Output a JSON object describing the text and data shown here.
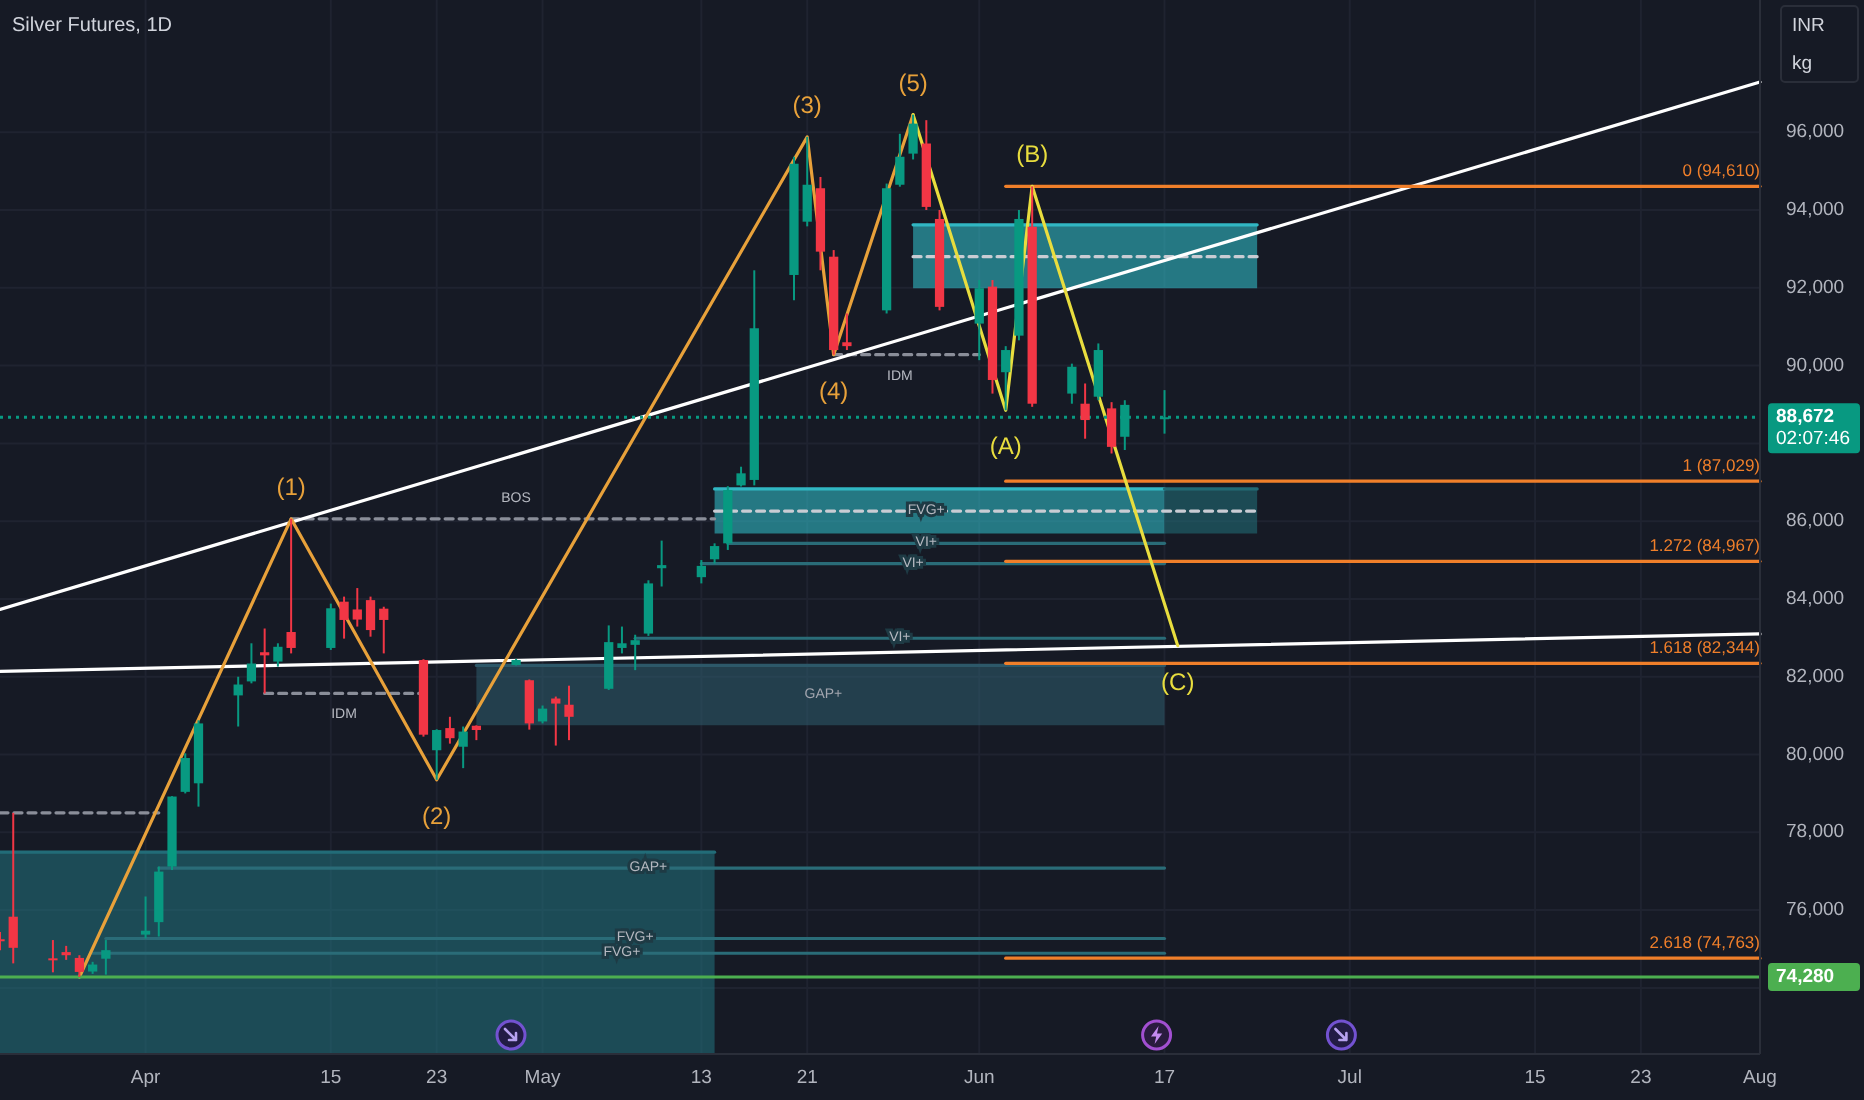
{
  "chart_data": {
    "type": "candlestick",
    "title": "Silver Futures, 1D",
    "ylabel": "INR\nkg",
    "x": [
      "--03-21",
      "--03-22",
      "--03-25",
      "--03-26",
      "--03-27",
      "--03-28",
      "--03-29",
      "--04-01",
      "--04-02",
      "--04-03",
      "--04-04",
      "--04-05",
      "--04-08",
      "--04-09",
      "--04-10",
      "--04-11",
      "--04-12",
      "--04-15",
      "--04-16",
      "--04-17",
      "--04-18",
      "--04-19",
      "--04-22",
      "--04-23",
      "--04-24",
      "--04-25",
      "--04-26",
      "--04-29",
      "--04-30",
      "--05-01",
      "--05-02",
      "--05-03",
      "--05-06",
      "--05-07",
      "--05-08",
      "--05-09",
      "--05-10",
      "--05-13",
      "--05-14",
      "--05-15",
      "--05-16",
      "--05-17",
      "--05-20",
      "--05-21",
      "--05-22",
      "--05-23",
      "--05-24",
      "--05-27",
      "--05-28",
      "--05-29",
      "--05-30",
      "--05-31",
      "--06-03",
      "--06-04",
      "--06-05",
      "--06-06",
      "--06-07",
      "--06-10",
      "--06-11",
      "--06-12",
      "--06-13",
      "--06-14",
      "--06-17"
    ],
    "ohlc": [
      [
        75250,
        75440,
        74970,
        75230
      ],
      [
        75830,
        78500,
        74630,
        75030
      ],
      [
        74760,
        75230,
        74400,
        74740
      ],
      [
        74920,
        75080,
        74720,
        74840
      ],
      [
        74770,
        74840,
        74280,
        74410
      ],
      [
        74420,
        74670,
        74360,
        74600
      ],
      [
        74750,
        75230,
        74340,
        74970
      ],
      [
        75370,
        76350,
        75270,
        75470
      ],
      [
        75690,
        77120,
        75320,
        76990
      ],
      [
        77120,
        78930,
        77030,
        78920
      ],
      [
        79040,
        80030,
        79000,
        79910
      ],
      [
        79260,
        80880,
        78660,
        80800
      ],
      [
        81520,
        82000,
        80720,
        81800
      ],
      [
        81880,
        82860,
        81830,
        82340
      ],
      [
        82630,
        83240,
        81570,
        82550
      ],
      [
        82390,
        82860,
        82260,
        82770
      ],
      [
        83150,
        86060,
        82600,
        82740
      ],
      [
        82740,
        83880,
        82690,
        83760
      ],
      [
        83930,
        84060,
        82980,
        83460
      ],
      [
        83730,
        84280,
        83290,
        83470
      ],
      [
        83970,
        84060,
        83030,
        83200
      ],
      [
        83750,
        83800,
        82600,
        83460
      ],
      [
        82430,
        82450,
        80460,
        80510
      ],
      [
        80110,
        80650,
        79350,
        80630
      ],
      [
        80680,
        80970,
        80280,
        80420
      ],
      [
        80200,
        80720,
        79650,
        80590
      ],
      [
        80740,
        80750,
        80370,
        80630
      ],
      [
        82300,
        82460,
        82290,
        82430
      ],
      [
        81910,
        81930,
        80640,
        80800
      ],
      [
        80850,
        81260,
        80800,
        81180
      ],
      [
        81440,
        81490,
        80230,
        81310
      ],
      [
        81280,
        81770,
        80370,
        80970
      ],
      [
        81690,
        83320,
        81660,
        82890
      ],
      [
        82740,
        83290,
        82600,
        82860
      ],
      [
        82820,
        83080,
        82170,
        82940
      ],
      [
        83110,
        84480,
        83050,
        84400
      ],
      [
        84790,
        85500,
        84320,
        84870
      ],
      [
        84560,
        85000,
        84400,
        84850
      ],
      [
        85020,
        85430,
        84910,
        85360
      ],
      [
        85430,
        86900,
        85260,
        86800
      ],
      [
        86920,
        87400,
        86890,
        87230
      ],
      [
        87060,
        92450,
        86920,
        90960
      ],
      [
        92330,
        95370,
        91680,
        95190
      ],
      [
        93700,
        95880,
        93580,
        94650
      ],
      [
        94560,
        94850,
        92450,
        92930
      ],
      [
        92800,
        92970,
        90280,
        90400
      ],
      [
        90600,
        91340,
        90400,
        90500
      ],
      [
        91420,
        94680,
        91340,
        94560
      ],
      [
        94650,
        95960,
        94600,
        95370
      ],
      [
        95450,
        96450,
        95300,
        96220
      ],
      [
        95710,
        96310,
        94000,
        94080
      ],
      [
        93770,
        94000,
        91420,
        91510
      ],
      [
        91080,
        92200,
        90140,
        91990
      ],
      [
        92030,
        92200,
        89280,
        89630
      ],
      [
        89830,
        90500,
        88850,
        90400
      ],
      [
        90770,
        94000,
        90650,
        93770
      ],
      [
        93570,
        94610,
        88940,
        89020
      ],
      [
        89280,
        90050,
        89020,
        89970
      ],
      [
        89020,
        89540,
        88120,
        88600
      ],
      [
        89200,
        90570,
        89110,
        90400
      ],
      [
        88900,
        89060,
        87740,
        87910
      ],
      [
        88170,
        89110,
        87830,
        88990
      ],
      [
        88640,
        89370,
        88250,
        88672
      ]
    ],
    "colors": [
      "#f23645",
      "#f23645",
      "#f23645",
      "#f23645",
      "#f23645",
      "#089981",
      "#089981",
      "#089981",
      "#089981",
      "#089981",
      "#089981",
      "#089981",
      "#089981",
      "#089981",
      "#f23645",
      "#089981",
      "#f23645",
      "#089981",
      "#f23645",
      "#f23645",
      "#f23645",
      "#f23645",
      "#f23645",
      "#089981",
      "#f23645",
      "#089981",
      "#f23645",
      "#089981",
      "#f23645",
      "#089981",
      "#f23645",
      "#f23645",
      "#089981",
      "#089981",
      "#089981",
      "#089981",
      "#089981",
      "#089981",
      "#089981",
      "#089981",
      "#089981",
      "#089981",
      "#089981",
      "#089981",
      "#f23645",
      "#f23645",
      "#f23645",
      "#089981",
      "#089981",
      "#089981",
      "#f23645",
      "#f23645",
      "#089981",
      "#f23645",
      "#089981",
      "#089981",
      "#f23645",
      "#089981",
      "#f23645",
      "#089981",
      "#f23645",
      "#089981",
      "#089981"
    ],
    "xlim": [
      "--03-21",
      "--08-01"
    ],
    "xticks": [
      {
        "value": "--04-01",
        "label": "Apr"
      },
      {
        "value": "--04-15",
        "label": "15"
      },
      {
        "value": "--04-23",
        "label": "23"
      },
      {
        "value": "--05-01",
        "label": "May"
      },
      {
        "value": "--05-13",
        "label": "13"
      },
      {
        "value": "--05-21",
        "label": "21"
      },
      {
        "value": "--06-03",
        "label": "Jun"
      },
      {
        "value": "--06-17",
        "label": "17"
      },
      {
        "value": "--07-01",
        "label": "Jul"
      },
      {
        "value": "--07-15",
        "label": "15"
      },
      {
        "value": "--07-23",
        "label": "23"
      },
      {
        "value": "--08-01",
        "label": "Aug"
      }
    ],
    "ylim": [
      72300,
      99400
    ],
    "yticks": [
      {
        "value": 74000,
        "label": null
      },
      {
        "value": 76000,
        "label": "76,000"
      },
      {
        "value": 78000,
        "label": "78,000"
      },
      {
        "value": 80000,
        "label": "80,000"
      },
      {
        "value": 82000,
        "label": "82,000"
      },
      {
        "value": 84000,
        "label": "84,000"
      },
      {
        "value": 86000,
        "label": "86,000"
      },
      {
        "value": 88000,
        "label": null
      },
      {
        "value": 90000,
        "label": "90,000"
      },
      {
        "value": 92000,
        "label": "92,000"
      },
      {
        "value": 94000,
        "label": "94,000"
      },
      {
        "value": 96000,
        "label": "96,000"
      }
    ],
    "grid": true,
    "series": [
      {
        "type": "line",
        "x": [
          "--03-21",
          "--05-14"
        ],
        "values": [
          77490,
          77490
        ],
        "lower": [
          72300,
          72300
        ],
        "upper": [
          77490,
          77490
        ],
        "color": "#226c78"
      },
      {
        "type": "line",
        "x": [
          "--04-26",
          "--06-17"
        ],
        "values": [
          82290,
          82290
        ],
        "lower": [
          80750,
          80750
        ],
        "upper": [
          82290,
          82290
        ],
        "color": "#2d5869"
      },
      {
        "type": "line",
        "x": [
          "--05-14",
          "--06-17"
        ],
        "values": [
          86830,
          86830
        ],
        "lower": [
          85680,
          85680
        ],
        "upper": [
          86830,
          86830
        ],
        "color": "#31b7c3"
      },
      {
        "type": "line",
        "x": [
          "--06-17",
          "--06-24"
        ],
        "values": [
          86830,
          86830
        ],
        "lower": [
          85680,
          85680
        ],
        "upper": [
          86830,
          86830
        ],
        "color": "#226a75"
      },
      {
        "type": "line",
        "x": [
          "--05-29",
          "--06-24"
        ],
        "values": [
          93620,
          93620
        ],
        "lower": [
          91990,
          91990
        ],
        "upper": [
          93620,
          93620
        ],
        "color": "#31b7c3"
      },
      {
        "type": "line",
        "x": [
          "--05-14",
          "--06-24"
        ],
        "values": [
          86260,
          86260
        ],
        "color": "#c9ccd3",
        "line_style": "dashed"
      },
      {
        "type": "line",
        "x": [
          "--05-29",
          "--06-24"
        ],
        "values": [
          92800,
          92800
        ],
        "color": "#c9ccd3",
        "line_style": "dashed"
      },
      {
        "type": "line",
        "x": [
          "--04-02",
          "--06-17"
        ],
        "values": [
          77080,
          77080
        ],
        "color": "#2a6c78"
      },
      {
        "type": "line",
        "x": [
          "--03-29",
          "--06-17"
        ],
        "values": [
          75270,
          75270
        ],
        "color": "#2a6c78"
      },
      {
        "type": "line",
        "x": [
          "--03-28",
          "--06-17"
        ],
        "values": [
          74890,
          74890
        ],
        "color": "#2a6c78"
      },
      {
        "type": "line",
        "x": [
          "--05-15",
          "--06-17"
        ],
        "values": [
          85430,
          85430
        ],
        "color": "#2a6c78"
      },
      {
        "type": "line",
        "x": [
          "--05-13",
          "--06-17"
        ],
        "values": [
          84910,
          84910
        ],
        "color": "#2a6c78"
      },
      {
        "type": "line",
        "x": [
          "--05-08",
          "--06-17"
        ],
        "values": [
          82990,
          82990
        ],
        "color": "#2a6c78"
      },
      {
        "type": "line",
        "x": [
          "--04-12",
          "--05-14"
        ],
        "values": [
          86060,
          86060
        ],
        "color": "#8a8e99",
        "line_style": "dashed"
      },
      {
        "type": "line",
        "x": [
          "--04-10",
          "--04-22"
        ],
        "values": [
          81570,
          81570
        ],
        "color": "#8a8e99",
        "line_style": "dashed"
      },
      {
        "type": "line",
        "x": [
          "--05-23",
          "--06-03"
        ],
        "values": [
          90280,
          90280
        ],
        "color": "#8a8e99",
        "line_style": "dashed"
      },
      {
        "type": "line",
        "x": [
          "--03-21",
          "--04-02"
        ],
        "values": [
          78500,
          78500
        ],
        "color": "#8a8e99",
        "line_style": "dashed"
      },
      {
        "type": "line",
        "x": [
          "--03-21",
          "--08-01"
        ],
        "values": [
          83730,
          97290
        ],
        "color": "#ffffff"
      },
      {
        "type": "line",
        "x": [
          "--03-21",
          "--08-01"
        ],
        "values": [
          82140,
          83100
        ],
        "color": "#ffffff"
      },
      {
        "type": "line",
        "x": [
          "--06-05",
          "--08-01"
        ],
        "values": [
          94610,
          94610
        ],
        "color": "#f07f2a",
        "value_labels": [
          null,
          "0 (94,610)"
        ]
      },
      {
        "type": "line",
        "x": [
          "--06-05",
          "--08-01"
        ],
        "values": [
          87029,
          87029
        ],
        "color": "#f07f2a",
        "value_labels": [
          null,
          "1 (87,029)"
        ]
      },
      {
        "type": "line",
        "x": [
          "--06-05",
          "--08-01"
        ],
        "values": [
          84967,
          84967
        ],
        "color": "#f07f2a",
        "value_labels": [
          null,
          "1.272 (84,967)"
        ]
      },
      {
        "type": "line",
        "x": [
          "--06-05",
          "--08-01"
        ],
        "values": [
          82344,
          82344
        ],
        "color": "#f07f2a",
        "value_labels": [
          null,
          "1.618 (82,344)"
        ]
      },
      {
        "type": "line",
        "x": [
          "--06-05",
          "--08-01"
        ],
        "values": [
          74763,
          74763
        ],
        "color": "#f07f2a",
        "value_labels": [
          null,
          "2.618 (74,763)"
        ]
      },
      {
        "type": "line",
        "x": [
          "--03-27",
          "--04-12",
          "--04-23",
          "--05-21",
          "--05-23",
          "--05-29"
        ],
        "values": [
          74280,
          86060,
          79350,
          95880,
          90280,
          96450
        ],
        "color": "#e8a13a"
      },
      {
        "type": "line",
        "x": [
          "--05-29",
          "--06-05",
          "--06-07",
          "--06-18"
        ],
        "values": [
          96450,
          88850,
          94610,
          82800
        ],
        "color": "#e8dd3e"
      }
    ],
    "ref_lines": [
      {
        "axis": "y",
        "value": 74280,
        "label": "74,280",
        "color": "#4caf50"
      },
      {
        "axis": "y",
        "value": 88672,
        "label": "88,672\n02:07:46",
        "color": "#089981",
        "line_style": "dotted"
      }
    ],
    "annotations": [
      {
        "text": "(1)",
        "x": "--04-12",
        "y": 86060
      },
      {
        "text": "(2)",
        "x": "--04-23",
        "y": 79350
      },
      {
        "text": "(3)",
        "x": "--05-21",
        "y": 95880
      },
      {
        "text": "(4)",
        "x": "--05-23",
        "y": 90280
      },
      {
        "text": "(5)",
        "x": "--05-29",
        "y": 96450
      },
      {
        "text": "(A)",
        "x": "--06-05",
        "y": 88850
      },
      {
        "text": "(B)",
        "x": "--06-07",
        "y": 94610
      },
      {
        "text": "(C)",
        "x": "--06-18",
        "y": 82800
      },
      {
        "text": "BOS",
        "x": "--04-29",
        "y": 86060
      },
      {
        "text": "IDM",
        "x": "--04-16",
        "y": 81570
      },
      {
        "text": "IDM",
        "x": "--05-28",
        "y": 90280
      },
      {
        "text": "FVG+",
        "x": "--05-30",
        "y": 86260
      },
      {
        "text": "VI+",
        "x": "--05-30",
        "y": 85430
      },
      {
        "text": "VI+",
        "x": "--05-29",
        "y": 84910
      },
      {
        "text": "VI+",
        "x": "--05-28",
        "y": 82990
      },
      "GAP+",
      {
        "text": "GAP+",
        "x": "--05-09",
        "y": 77080
      },
      {
        "text": "FVG+",
        "x": "--05-08",
        "y": 75270
      },
      {
        "text": "FVG+",
        "x": "--05-07",
        "y": 74890
      }
    ]
  }
}
